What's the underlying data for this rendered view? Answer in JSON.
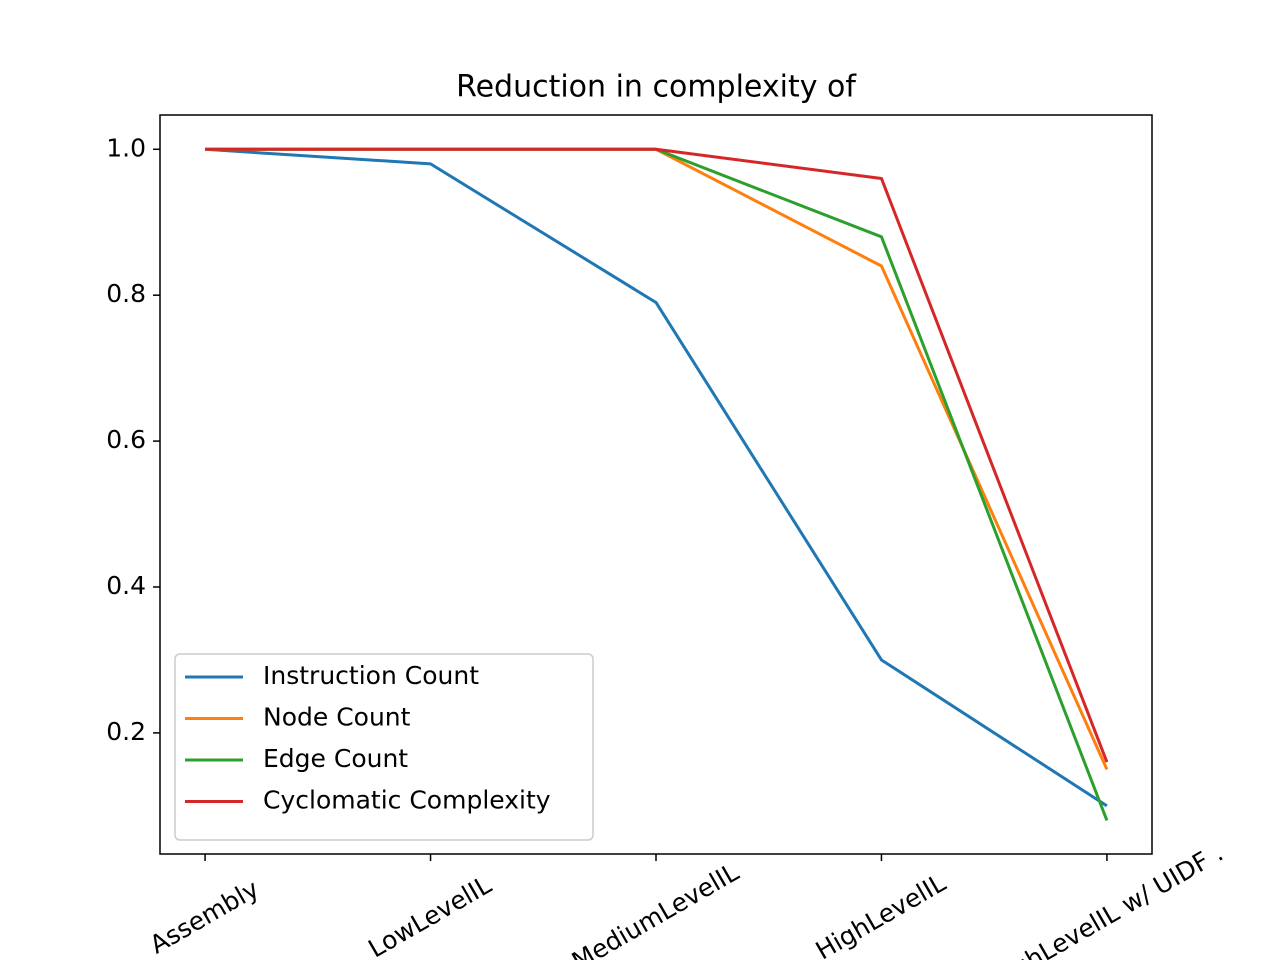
{
  "chart_data": {
    "type": "line",
    "title": "Reduction in complexity of",
    "categories": [
      "Assembly",
      "LowLevelIL",
      "MediumLevelIL",
      "HighLevelIL",
      "HighLevelIL w/ UIDF ."
    ],
    "series": [
      {
        "name": "Instruction Count",
        "color": "#1f77b4",
        "values": [
          1.0,
          0.98,
          0.79,
          0.3,
          0.1
        ]
      },
      {
        "name": "Node Count",
        "color": "#ff7f0e",
        "values": [
          1.0,
          1.0,
          1.0,
          0.84,
          0.15
        ]
      },
      {
        "name": "Edge Count",
        "color": "#2ca02c",
        "values": [
          1.0,
          1.0,
          1.0,
          0.88,
          0.08
        ]
      },
      {
        "name": "Cyclomatic Complexity",
        "color": "#d62728",
        "values": [
          1.0,
          1.0,
          1.0,
          0.96,
          0.16
        ]
      }
    ],
    "ylim": [
      0.034,
      1.047
    ],
    "yticks": [
      0.2,
      0.4,
      0.6,
      0.8,
      {
        "value": 1,
        "label": "1.0"
      }
    ],
    "legend": "lower left"
  }
}
